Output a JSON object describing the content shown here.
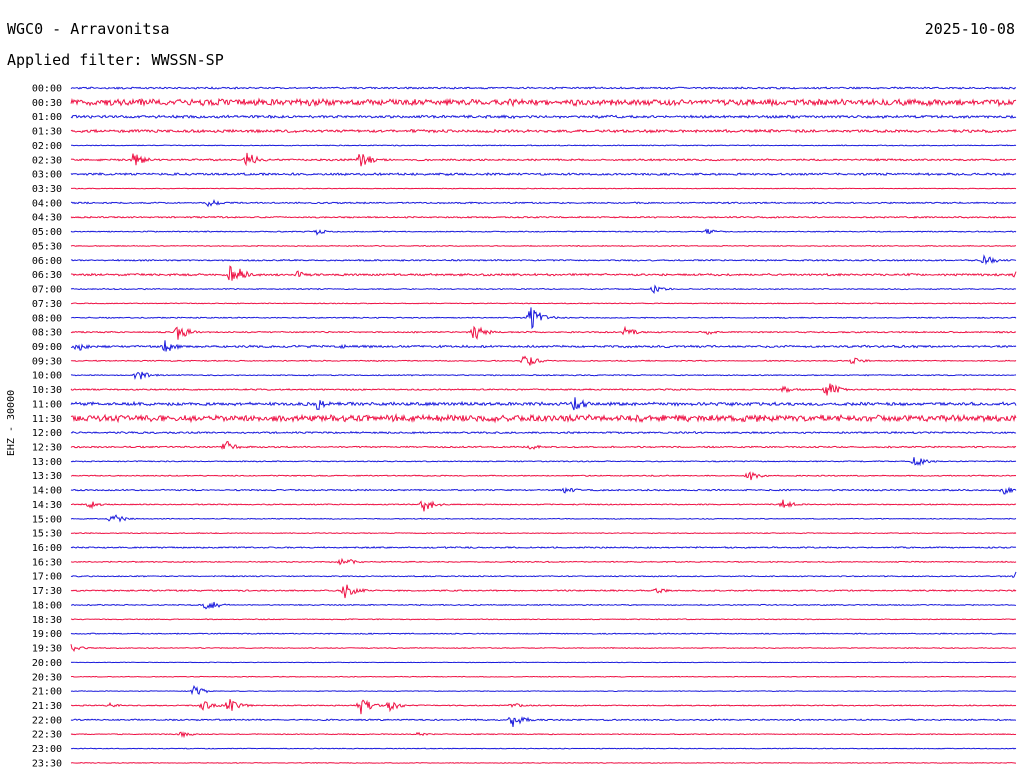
{
  "header": {
    "station": "WGC0 - Arravonitsa",
    "date": "2025-10-08",
    "filter": "Applied filter: WWSSN-SP",
    "channel": "EHZ - 30000"
  },
  "colors": {
    "blue": "#1a1adc",
    "red": "#ee1144",
    "text": "#000000"
  },
  "chart_data": {
    "type": "line",
    "title": "WGC0 - Arravonitsa",
    "subtitle": "Applied filter: WWSSN-SP",
    "ylabel": "EHZ - 30000",
    "row_labels": [
      "00:00",
      "00:30",
      "01:00",
      "01:30",
      "02:00",
      "02:30",
      "03:00",
      "03:30",
      "04:00",
      "04:30",
      "05:00",
      "05:30",
      "06:00",
      "06:30",
      "07:00",
      "07:30",
      "08:00",
      "08:30",
      "09:00",
      "09:30",
      "10:00",
      "10:30",
      "11:00",
      "11:30",
      "12:00",
      "12:30",
      "13:00",
      "13:30",
      "14:00",
      "14:30",
      "15:00",
      "15:30",
      "16:00",
      "16:30",
      "17:00",
      "17:30",
      "18:00",
      "18:30",
      "19:00",
      "19:30",
      "20:00",
      "20:30",
      "21:00",
      "21:30",
      "22:00",
      "22:30",
      "23:00",
      "23:30"
    ],
    "row_colors": [
      "blue",
      "red"
    ],
    "noise_levels": [
      1.0,
      3.5,
      1.5,
      1.5,
      0.5,
      1.0,
      1.2,
      0.4,
      0.8,
      0.8,
      0.6,
      0.5,
      0.8,
      1.2,
      0.6,
      0.5,
      0.6,
      0.8,
      1.2,
      0.6,
      0.6,
      0.8,
      1.8,
      3.5,
      1.0,
      0.8,
      0.6,
      0.6,
      0.8,
      0.6,
      0.5,
      0.5,
      0.8,
      0.6,
      0.6,
      0.8,
      0.6,
      0.5,
      0.6,
      0.5,
      0.3,
      0.4,
      0.4,
      0.6,
      0.8,
      0.5,
      0.4,
      0.4
    ],
    "events": [
      {
        "row": "02:30",
        "minute": 2.0,
        "amp": 8
      },
      {
        "row": "02:30",
        "minute": 5.6,
        "amp": 8
      },
      {
        "row": "02:30",
        "minute": 9.2,
        "amp": 9
      },
      {
        "row": "04:00",
        "minute": 4.4,
        "amp": 5
      },
      {
        "row": "05:00",
        "minute": 7.8,
        "amp": 3
      },
      {
        "row": "05:00",
        "minute": 20.2,
        "amp": 3
      },
      {
        "row": "06:00",
        "minute": 29.0,
        "amp": 6
      },
      {
        "row": "06:30",
        "minute": 5.1,
        "amp": 14
      },
      {
        "row": "06:30",
        "minute": 7.2,
        "amp": 4
      },
      {
        "row": "06:30",
        "minute": 30.0,
        "amp": 5
      },
      {
        "row": "07:00",
        "minute": 18.5,
        "amp": 4
      },
      {
        "row": "08:00",
        "minute": 14.6,
        "amp": 13
      },
      {
        "row": "08:30",
        "minute": 3.4,
        "amp": 8
      },
      {
        "row": "08:30",
        "minute": 12.8,
        "amp": 9
      },
      {
        "row": "08:30",
        "minute": 17.6,
        "amp": 5
      },
      {
        "row": "08:30",
        "minute": 20.2,
        "amp": 3
      },
      {
        "row": "09:00",
        "minute": 0.2,
        "amp": 5
      },
      {
        "row": "09:00",
        "minute": 3.0,
        "amp": 7
      },
      {
        "row": "09:00",
        "minute": 8.6,
        "amp": 2
      },
      {
        "row": "09:30",
        "minute": 14.4,
        "amp": 8
      },
      {
        "row": "09:30",
        "minute": 24.8,
        "amp": 4
      },
      {
        "row": "10:00",
        "minute": 2.1,
        "amp": 7
      },
      {
        "row": "10:30",
        "minute": 22.6,
        "amp": 4
      },
      {
        "row": "10:30",
        "minute": 24.0,
        "amp": 9
      },
      {
        "row": "11:00",
        "minute": 7.8,
        "amp": 7
      },
      {
        "row": "11:00",
        "minute": 16.0,
        "amp": 8
      },
      {
        "row": "12:30",
        "minute": 4.9,
        "amp": 7
      },
      {
        "row": "12:30",
        "minute": 14.6,
        "amp": 3
      },
      {
        "row": "13:00",
        "minute": 26.8,
        "amp": 6
      },
      {
        "row": "13:30",
        "minute": 21.5,
        "amp": 6
      },
      {
        "row": "14:00",
        "minute": 15.7,
        "amp": 4
      },
      {
        "row": "14:00",
        "minute": 29.6,
        "amp": 5
      },
      {
        "row": "14:30",
        "minute": 0.6,
        "amp": 4
      },
      {
        "row": "14:30",
        "minute": 11.2,
        "amp": 8
      },
      {
        "row": "14:30",
        "minute": 22.6,
        "amp": 5
      },
      {
        "row": "15:00",
        "minute": 1.3,
        "amp": 7
      },
      {
        "row": "16:30",
        "minute": 8.6,
        "amp": 6
      },
      {
        "row": "17:00",
        "minute": 30.0,
        "amp": 5
      },
      {
        "row": "17:30",
        "minute": 8.7,
        "amp": 9
      },
      {
        "row": "17:30",
        "minute": 18.6,
        "amp": 3
      },
      {
        "row": "18:00",
        "minute": 4.3,
        "amp": 7
      },
      {
        "row": "19:30",
        "minute": 0.0,
        "amp": 4
      },
      {
        "row": "21:00",
        "minute": 3.9,
        "amp": 5
      },
      {
        "row": "21:30",
        "minute": 1.2,
        "amp": 3
      },
      {
        "row": "21:30",
        "minute": 4.2,
        "amp": 6
      },
      {
        "row": "21:30",
        "minute": 5.0,
        "amp": 8
      },
      {
        "row": "21:30",
        "minute": 9.2,
        "amp": 10
      },
      {
        "row": "21:30",
        "minute": 10.1,
        "amp": 6
      },
      {
        "row": "21:30",
        "minute": 14.0,
        "amp": 3
      },
      {
        "row": "22:00",
        "minute": 14.0,
        "amp": 9
      },
      {
        "row": "22:30",
        "minute": 3.5,
        "amp": 3
      },
      {
        "row": "22:30",
        "minute": 11.0,
        "amp": 2
      }
    ]
  }
}
